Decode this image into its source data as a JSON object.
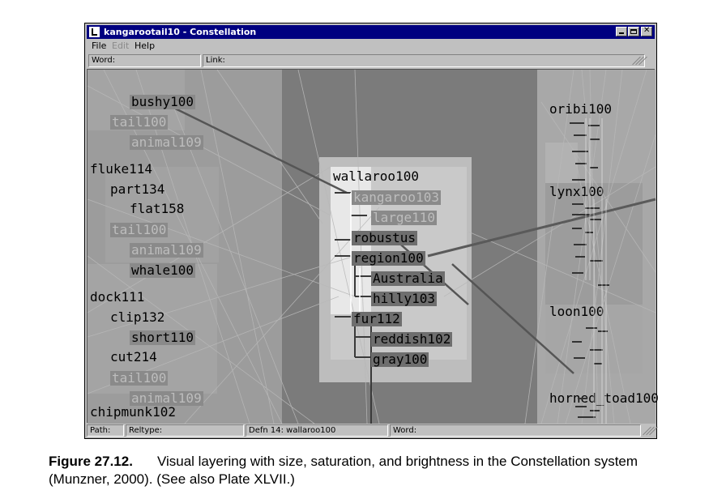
{
  "window": {
    "title": "kangarootail10 - Constellation",
    "menu": [
      "File",
      "Edit",
      "Help"
    ]
  },
  "fields": {
    "word_label": "Word:",
    "link_label": "Link:"
  },
  "graph": {
    "left_nodes": [
      {
        "label": "bushy100",
        "style": "dark"
      },
      {
        "label": "tail100",
        "style": "faded"
      },
      {
        "label": "animal109",
        "style": "faded"
      },
      {
        "label": "fluke114",
        "style": "plain"
      },
      {
        "label": "part134",
        "style": "plain"
      },
      {
        "label": "flat158",
        "style": "plain"
      },
      {
        "label": "tail100",
        "style": "faded"
      },
      {
        "label": "animal109",
        "style": "faded"
      },
      {
        "label": "whale100",
        "style": "dark"
      },
      {
        "label": "dock111",
        "style": "plain"
      },
      {
        "label": "clip132",
        "style": "plain"
      },
      {
        "label": "short110",
        "style": "dark"
      },
      {
        "label": "cut214",
        "style": "plain"
      },
      {
        "label": "tail100",
        "style": "faded"
      },
      {
        "label": "animal109",
        "style": "faded"
      },
      {
        "label": "chipmunk102",
        "style": "plain"
      }
    ],
    "center_nodes": [
      {
        "label": "wallaroo100",
        "style": "plain"
      },
      {
        "label": "kangaroo103",
        "style": "faded"
      },
      {
        "label": "large110",
        "style": "faded"
      },
      {
        "label": "robustus",
        "style": "dark"
      },
      {
        "label": "region100",
        "style": "dark"
      },
      {
        "label": "Australia",
        "style": "dark"
      },
      {
        "label": "hilly103",
        "style": "dark"
      },
      {
        "label": "fur112",
        "style": "dark"
      },
      {
        "label": "reddish102",
        "style": "dark"
      },
      {
        "label": "gray100",
        "style": "dark"
      }
    ],
    "right_nodes": [
      {
        "label": "oribi100"
      },
      {
        "label": "lynx100"
      },
      {
        "label": "loon100"
      },
      {
        "label": "horned_toad100"
      }
    ]
  },
  "status": {
    "path_label": "Path:",
    "reltype_label": "Reltype:",
    "defn_text": "Defn 14:  wallaroo100",
    "word_label": "Word:"
  },
  "caption": {
    "figure_label": "Figure 27.12.",
    "text": "Visual layering with size, saturation, and brightness in the Constellation system (Munzner, 2000). (See also Plate XLVII.)"
  }
}
